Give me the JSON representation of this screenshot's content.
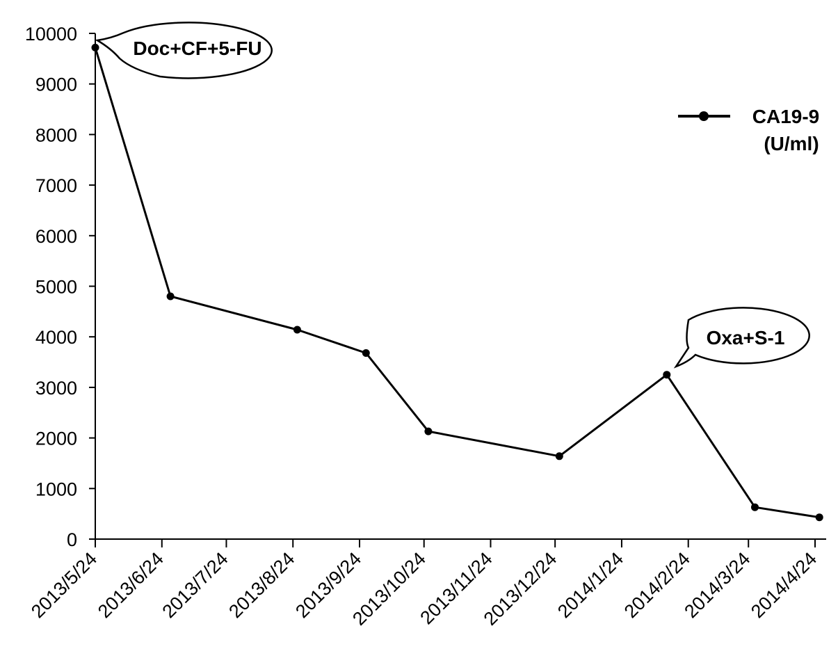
{
  "chart_data": {
    "type": "line",
    "title": "",
    "xlabel": "",
    "ylabel": "",
    "ylim": [
      0,
      10000
    ],
    "yticks": [
      "0",
      "1000",
      "2000",
      "3000",
      "4000",
      "5000",
      "6000",
      "7000",
      "8000",
      "9000",
      "10000"
    ],
    "xticks": [
      "2013/5/24",
      "2013/6/24",
      "2013/7/24",
      "2013/8/24",
      "2013/9/24",
      "2013/10/24",
      "2013/11/24",
      "2013/12/24",
      "2014/1/24",
      "2014/2/24",
      "2014/3/24",
      "2014/4/24"
    ],
    "grid": false,
    "legend_position": "top-right",
    "series": [
      {
        "name": "CA19-9 (U/ml)",
        "name_lines": [
          "CA19-9",
          "(U/ml)"
        ],
        "color": "#000000",
        "points": [
          {
            "x": "2013/5/24",
            "y": 9720
          },
          {
            "x": "2013/6/28",
            "y": 4800
          },
          {
            "x": "2013/8/26",
            "y": 4140
          },
          {
            "x": "2013/9/27",
            "y": 3680
          },
          {
            "x": "2013/10/26",
            "y": 2130
          },
          {
            "x": "2013/12/26",
            "y": 1640
          },
          {
            "x": "2014/2/14",
            "y": 3250
          },
          {
            "x": "2014/3/27",
            "y": 630
          },
          {
            "x": "2014/4/26",
            "y": 430
          }
        ]
      }
    ],
    "annotations": [
      {
        "text": "Doc+CF+5-FU",
        "x": "2013/5/24",
        "y": 9720
      },
      {
        "text": "Oxa+S-1",
        "x": "2014/2/14",
        "y": 3250
      }
    ]
  }
}
